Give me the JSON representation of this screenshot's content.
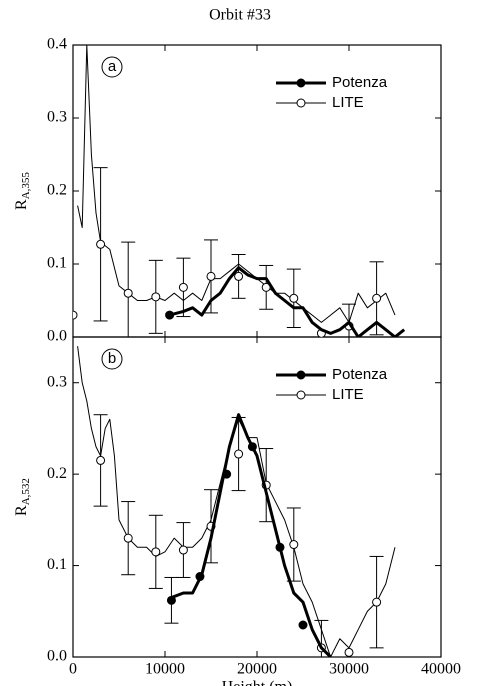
{
  "chart_data": [
    {
      "type": "line",
      "title": "Orbit #33",
      "panel_label": "a",
      "ylabel": "R",
      "ylabel_sub": "A,355",
      "xlim": [
        0,
        40000
      ],
      "ylim": [
        0,
        0.4
      ],
      "yticks": [
        {
          "value": 0,
          "label": "0.0"
        },
        0.1,
        0.2,
        0.3,
        0.4
      ],
      "legend": "upper right",
      "series": [
        {
          "name": "Potenza",
          "color": "#000000",
          "line_width": 3,
          "marker": "filled",
          "x": [
            10500,
            12000,
            13000,
            14000,
            15000,
            16000,
            17000,
            18000,
            19000,
            20000,
            21000,
            22000,
            23000,
            24000,
            25000,
            26000,
            27000,
            28000,
            29000,
            30000,
            31000,
            32000,
            33000,
            34000,
            35000,
            36000
          ],
          "values": [
            0.03,
            0.035,
            0.04,
            0.03,
            0.05,
            0.06,
            0.08,
            0.095,
            0.085,
            0.08,
            0.08,
            0.06,
            0.05,
            0.04,
            0.04,
            0.02,
            0.01,
            0.005,
            0.01,
            0.02,
            0.0,
            0.01,
            0.02,
            0.01,
            0.0,
            0.01
          ],
          "markers": {
            "x": [
              10500
            ],
            "values": [
              0.03
            ],
            "errors": [
              null
            ]
          }
        },
        {
          "name": "LITE",
          "color": "#000000",
          "line_width": 1,
          "marker": "open",
          "x": [
            500,
            1000,
            1500,
            2000,
            2500,
            3000,
            4000,
            5000,
            6000,
            7000,
            8000,
            9000,
            10000,
            11000,
            12000,
            13000,
            14000,
            15000,
            16000,
            17000,
            18000,
            19000,
            20000,
            21000,
            22000,
            23000,
            24000,
            25000,
            26000,
            27000,
            28000,
            29000,
            30000,
            31000,
            32000,
            33000,
            34000,
            35000
          ],
          "values": [
            0.18,
            0.15,
            0.4,
            0.25,
            0.17,
            0.13,
            0.12,
            0.07,
            0.06,
            0.05,
            0.05,
            0.055,
            0.05,
            0.06,
            0.05,
            0.06,
            0.05,
            0.08,
            0.08,
            0.09,
            0.1,
            0.09,
            0.08,
            0.07,
            0.06,
            0.06,
            0.05,
            0.04,
            0.03,
            0.02,
            0.03,
            0.04,
            0.02,
            0.06,
            0.04,
            0.05,
            0.06,
            0.03
          ],
          "markers": {
            "x": [
              0,
              3000,
              6000,
              9000,
              12000,
              15000,
              18000,
              21000,
              24000,
              27000,
              30000,
              33000
            ],
            "values": [
              0.03,
              0.127,
              0.06,
              0.055,
              0.068,
              0.083,
              0.083,
              0.068,
              0.053,
              0.005,
              0.015,
              0.053
            ],
            "errors": [
              null,
              0.105,
              0.07,
              0.05,
              0.04,
              0.05,
              0.03,
              0.03,
              0.04,
              null,
              0.03,
              0.05
            ]
          }
        }
      ]
    },
    {
      "type": "line",
      "panel_label": "b",
      "ylabel": "R",
      "ylabel_sub": "A,532",
      "xlabel": "Height (m)",
      "xlim": [
        0,
        40000
      ],
      "ylim": [
        0,
        0.35
      ],
      "xticks": [
        0,
        10000,
        20000,
        30000,
        40000
      ],
      "yticks": [
        {
          "value": 0,
          "label": "0.0"
        },
        0.1,
        0.2,
        0.3
      ],
      "legend": "upper right",
      "series": [
        {
          "name": "Potenza",
          "color": "#000000",
          "line_width": 3,
          "marker": "filled",
          "x": [
            10700,
            12000,
            13000,
            14000,
            15000,
            16000,
            17000,
            18000,
            19000,
            20000,
            21000,
            22000,
            23000,
            24000,
            25000,
            26000,
            27000,
            28000
          ],
          "values": [
            0.065,
            0.07,
            0.07,
            0.09,
            0.13,
            0.18,
            0.23,
            0.265,
            0.24,
            0.22,
            0.18,
            0.14,
            0.1,
            0.07,
            0.06,
            0.03,
            0.01,
            0.0
          ],
          "markers": {
            "x": [
              10700,
              13800,
              16700,
              19500,
              22500,
              25000
            ],
            "values": [
              0.062,
              0.088,
              0.2,
              0.23,
              0.12,
              0.035
            ],
            "errors": [
              0.025,
              null,
              null,
              null,
              null,
              null
            ]
          }
        },
        {
          "name": "LITE",
          "color": "#000000",
          "line_width": 1,
          "marker": "open",
          "x": [
            500,
            1000,
            1500,
            2000,
            2500,
            3000,
            3500,
            4000,
            4500,
            5000,
            6000,
            7000,
            8000,
            9000,
            10000,
            11000,
            12000,
            13000,
            14000,
            15000,
            16000,
            17000,
            18000,
            19000,
            20000,
            21000,
            22000,
            23000,
            24000,
            25000,
            26000,
            27000,
            28000,
            29000,
            30000,
            31000,
            32000,
            33000,
            34000,
            35000
          ],
          "values": [
            0.34,
            0.3,
            0.28,
            0.25,
            0.23,
            0.22,
            0.25,
            0.26,
            0.22,
            0.15,
            0.13,
            0.12,
            0.12,
            0.11,
            0.115,
            0.13,
            0.12,
            0.12,
            0.13,
            0.15,
            0.19,
            0.23,
            0.26,
            0.24,
            0.24,
            0.19,
            0.17,
            0.15,
            0.12,
            0.08,
            0.06,
            0.03,
            0.0,
            0.02,
            0.01,
            0.03,
            0.05,
            0.06,
            0.08,
            0.12
          ],
          "markers": {
            "x": [
              3000,
              6000,
              9000,
              12000,
              15000,
              18000,
              21000,
              24000,
              27000,
              30000,
              33000
            ],
            "values": [
              0.215,
              0.13,
              0.115,
              0.117,
              0.143,
              0.222,
              0.188,
              0.123,
              0.01,
              0.005,
              0.06
            ],
            "errors": [
              0.05,
              0.04,
              0.04,
              0.03,
              0.04,
              0.04,
              0.04,
              0.04,
              0.03,
              null,
              0.05
            ]
          }
        }
      ]
    }
  ]
}
